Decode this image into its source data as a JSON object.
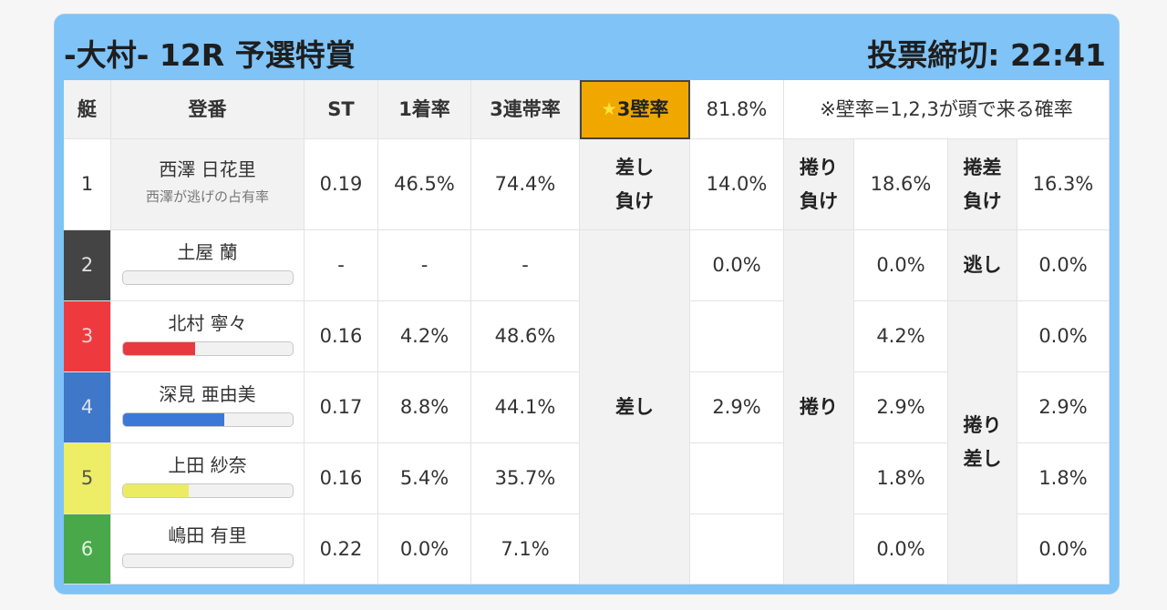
{
  "header": {
    "title": "-大村- 12R 予選特賞",
    "deadline": "投票締切: 22:41"
  },
  "table_header": {
    "lane": "艇",
    "name": "登番",
    "st": "ST",
    "win_rate": "1着率",
    "trifecta_rate": "3連帯率",
    "wall_star": "★",
    "wall_label": "3壁率",
    "wall_value": "81.8%",
    "note": "※壁率=1,2,3が頭で来る確率"
  },
  "racers": [
    {
      "lane": "1",
      "name": "西澤 日花里",
      "sub": "西澤が逃げの占有率",
      "st": "0.19",
      "win": "46.5%",
      "tri": "74.4%",
      "lane_color": "#ffffff",
      "lane_text": "#333333"
    },
    {
      "lane": "2",
      "name": "土屋 蘭",
      "st": "-",
      "win": "-",
      "tri": "-",
      "bar": 0.0,
      "bar_color": "#333333",
      "lane_color": "#444444",
      "lane_text": "#e0e0e0"
    },
    {
      "lane": "3",
      "name": "北村 寧々",
      "st": "0.16",
      "win": "4.2%",
      "tri": "48.6%",
      "bar": 0.43,
      "bar_color": "#e8393f",
      "lane_color": "#ee3a3f",
      "lane_text": "#f6d0d0"
    },
    {
      "lane": "4",
      "name": "深見 亜由美",
      "st": "0.17",
      "win": "8.8%",
      "tri": "44.1%",
      "bar": 0.6,
      "bar_color": "#3c78d8",
      "lane_color": "#3f77c9",
      "lane_text": "#d7e3f5"
    },
    {
      "lane": "5",
      "name": "上田 紗奈",
      "st": "0.16",
      "win": "5.4%",
      "tri": "35.7%",
      "bar": 0.39,
      "bar_color": "#ecec62",
      "lane_color": "#eded66",
      "lane_text": "#555555"
    },
    {
      "lane": "6",
      "name": "嶋田 有里",
      "st": "0.22",
      "win": "0.0%",
      "tri": "7.1%",
      "bar": 0.0,
      "bar_color": "#4caf50",
      "lane_color": "#49a84a",
      "lane_text": "#e3f3e3"
    }
  ],
  "analysis": {
    "sashi_make_label_1": "差し",
    "sashi_make_label_2": "負け",
    "sashi_make_value": "14.0%",
    "makuri_make_label_1": "捲り",
    "makuri_make_label_2": "負け",
    "makuri_make_value": "18.6%",
    "makurizashi_make_label_1": "捲差",
    "makurizashi_make_label_2": "負け",
    "makurizashi_make_value": "16.3%",
    "sashi_label": "差し",
    "makuri_label": "捲り",
    "nige_label": "逃し",
    "makurizashi_label_1": "捲り",
    "makurizashi_label_2": "差し",
    "sashi_values": {
      "l2": "0.0%",
      "l4": "2.9%"
    },
    "makuri_values": {
      "l2": "0.0%",
      "l3": "4.2%",
      "l4": "2.9%",
      "l5": "1.8%",
      "l6": "0.0%"
    },
    "nige_value": "0.0%",
    "makurizashi_values": {
      "l3": "0.0%",
      "l4": "2.9%",
      "l5": "1.8%",
      "l6": "0.0%"
    }
  }
}
